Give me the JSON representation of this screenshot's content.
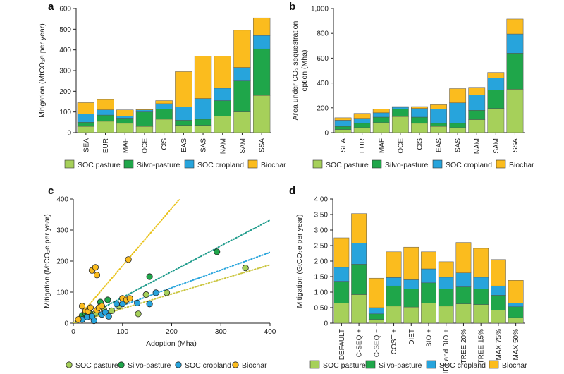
{
  "colors": {
    "soc_pasture": "#a6d05a",
    "silvo_pasture": "#1fa64a",
    "soc_cropland": "#27a4dc",
    "biochar": "#fbbc1e"
  },
  "series_names": [
    "SOC pasture",
    "Silvo-pasture",
    "SOC cropland",
    "Biochar"
  ],
  "chart_data": [
    {
      "panel": "a",
      "type": "bar",
      "stacked": true,
      "categories": [
        "SEA",
        "EUR",
        "MAF",
        "OCE",
        "CIS",
        "EAS",
        "SAS",
        "NAM",
        "SAM",
        "SSA"
      ],
      "series": [
        {
          "name": "SOC pasture",
          "values": [
            30,
            55,
            45,
            30,
            65,
            35,
            35,
            80,
            100,
            180
          ]
        },
        {
          "name": "Silvo-pasture",
          "values": [
            20,
            30,
            25,
            70,
            50,
            25,
            30,
            75,
            150,
            225
          ]
        },
        {
          "name": "SOC cropland",
          "values": [
            40,
            25,
            10,
            10,
            25,
            65,
            100,
            60,
            65,
            65
          ]
        },
        {
          "name": "Biochar",
          "values": [
            55,
            50,
            30,
            5,
            15,
            170,
            205,
            155,
            180,
            85
          ]
        }
      ],
      "ylabel": "Mitigation (MtCO₂e per year)",
      "ylim": [
        0,
        600
      ],
      "yticks": [
        0,
        100,
        200,
        300,
        400,
        500,
        600
      ]
    },
    {
      "panel": "b",
      "type": "bar",
      "stacked": true,
      "categories": [
        "SEA",
        "EUR",
        "MAF",
        "OCE",
        "CIS",
        "EAS",
        "SAS",
        "NAM",
        "SAM",
        "SSA"
      ],
      "series": [
        {
          "name": "SOC pasture",
          "values": [
            25,
            40,
            80,
            130,
            75,
            50,
            40,
            105,
            195,
            350
          ]
        },
        {
          "name": "Silvo-pasture",
          "values": [
            25,
            35,
            45,
            60,
            50,
            25,
            35,
            75,
            150,
            290
          ]
        },
        {
          "name": "SOC cropland",
          "values": [
            50,
            40,
            35,
            15,
            70,
            115,
            165,
            125,
            95,
            155
          ]
        },
        {
          "name": "Biochar",
          "values": [
            20,
            40,
            30,
            5,
            15,
            35,
            115,
            60,
            45,
            120
          ]
        }
      ],
      "ylabel": "Area under CO₂ sequestration option (Mha)",
      "ylim": [
        0,
        1000
      ],
      "yticks": [
        "0",
        "200",
        "400",
        "600",
        "800",
        "1,000"
      ]
    },
    {
      "panel": "c",
      "type": "scatter",
      "xlabel": "Adoption (Mha)",
      "ylabel": "Mitigation (MtCO₂e per year)",
      "xlim": [
        0,
        400
      ],
      "ylim": [
        0,
        400
      ],
      "xticks": [
        0,
        100,
        200,
        300,
        400
      ],
      "yticks": [
        0,
        100,
        200,
        300,
        400
      ],
      "series": [
        {
          "name": "SOC pasture",
          "points": [
            [
              20,
              18
            ],
            [
              28,
              30
            ],
            [
              30,
              22
            ],
            [
              38,
              28
            ],
            [
              45,
              32
            ],
            [
              62,
              45
            ],
            [
              78,
              40
            ],
            [
              92,
              55
            ],
            [
              105,
              70
            ],
            [
              132,
              30
            ],
            [
              148,
              92
            ],
            [
              190,
              98
            ],
            [
              350,
              178
            ]
          ]
        },
        {
          "name": "Silvo-pasture",
          "points": [
            [
              18,
              25
            ],
            [
              25,
              30
            ],
            [
              32,
              35
            ],
            [
              55,
              68
            ],
            [
              70,
              75
            ],
            [
              155,
              150
            ],
            [
              292,
              230
            ]
          ]
        },
        {
          "name": "SOC cropland",
          "points": [
            [
              18,
              12
            ],
            [
              28,
              20
            ],
            [
              38,
              22
            ],
            [
              42,
              8
            ],
            [
              58,
              28
            ],
            [
              65,
              35
            ],
            [
              72,
              22
            ],
            [
              88,
              62
            ],
            [
              100,
              62
            ],
            [
              130,
              65
            ],
            [
              155,
              62
            ],
            [
              168,
              98
            ]
          ]
        },
        {
          "name": "Biochar",
          "points": [
            [
              10,
              12
            ],
            [
              18,
              55
            ],
            [
              25,
              40
            ],
            [
              30,
              38
            ],
            [
              35,
              50
            ],
            [
              38,
              170
            ],
            [
              45,
              180
            ],
            [
              48,
              155
            ],
            [
              48,
              42
            ],
            [
              52,
              50
            ],
            [
              58,
              55
            ],
            [
              100,
              80
            ],
            [
              108,
              75
            ],
            [
              112,
              205
            ],
            [
              115,
              80
            ]
          ]
        }
      ],
      "trendlines": [
        {
          "name": "Biochar",
          "slope": 1.85,
          "intercept": 0
        },
        {
          "name": "Silvo-pasture",
          "slope": 0.83,
          "intercept": 0
        },
        {
          "name": "SOC cropland",
          "slope": 0.57,
          "intercept": 0
        },
        {
          "name": "SOC pasture",
          "slope": 0.47,
          "intercept": 0
        }
      ]
    },
    {
      "panel": "d",
      "type": "bar",
      "stacked": true,
      "categories": [
        "DEFAULT",
        "C-SEQ +",
        "C-SEQ −",
        "COST +",
        "DIET",
        "BIO +",
        "DIET and BIO +",
        "TREE 20%",
        "TREE 15%",
        "MAX 75%",
        "MAX 50%"
      ],
      "series": [
        {
          "name": "SOC pasture",
          "values": [
            0.65,
            0.92,
            0.12,
            0.55,
            0.52,
            0.65,
            0.55,
            0.62,
            0.6,
            0.42,
            0.18
          ]
        },
        {
          "name": "Silvo-pasture",
          "values": [
            0.7,
            0.98,
            0.18,
            0.65,
            0.58,
            0.65,
            0.55,
            0.55,
            0.5,
            0.48,
            0.35
          ]
        },
        {
          "name": "SOC cropland",
          "values": [
            0.45,
            0.68,
            0.2,
            0.27,
            0.3,
            0.45,
            0.38,
            0.45,
            0.38,
            0.3,
            0.12
          ]
        },
        {
          "name": "Biochar",
          "values": [
            0.95,
            0.95,
            0.95,
            0.83,
            1.05,
            0.55,
            0.5,
            0.98,
            0.93,
            0.85,
            0.73
          ]
        }
      ],
      "ylabel": "Mitigation (GtCO₂e per year)",
      "ylim": [
        0,
        4
      ],
      "yticks": [
        "0",
        "0.50",
        "1.00",
        "1.50",
        "2.00",
        "2.50",
        "3.00",
        "3.50",
        "4.00"
      ]
    }
  ]
}
